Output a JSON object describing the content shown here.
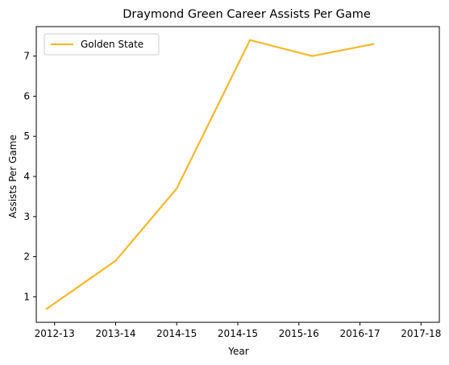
{
  "chart_data": {
    "type": "line",
    "title": "Draymond Green Career Assists Per Game",
    "xlabel": "Year",
    "ylabel": "Assists Per Game",
    "x_tick_labels": [
      "2012-13",
      "2013-14",
      "2014-15",
      "2014-15",
      "2015-16",
      "2016-17",
      "2017-18"
    ],
    "x_tick_values": [
      0,
      1,
      2,
      3,
      4,
      5,
      6
    ],
    "x": [
      0,
      1,
      2,
      3,
      4,
      5,
      6
    ],
    "x_range": [
      -0.3,
      6.3
    ],
    "y_ticks": [
      1,
      2,
      3,
      4,
      5,
      6,
      7
    ],
    "ylim": [
      0.365,
      7.735
    ],
    "grid": false,
    "legend_position": "top-left",
    "series": [
      {
        "name": "Golden State",
        "color": "#f5b72c",
        "points": [
          {
            "x": -0.13,
            "y": 0.7
          },
          {
            "x": 1.0,
            "y": 1.9
          },
          {
            "x": 2.0,
            "y": 3.7
          },
          {
            "x": 3.2,
            "y": 7.4
          },
          {
            "x": 4.22,
            "y": 7.0
          },
          {
            "x": 5.22,
            "y": 7.3
          }
        ]
      }
    ]
  }
}
